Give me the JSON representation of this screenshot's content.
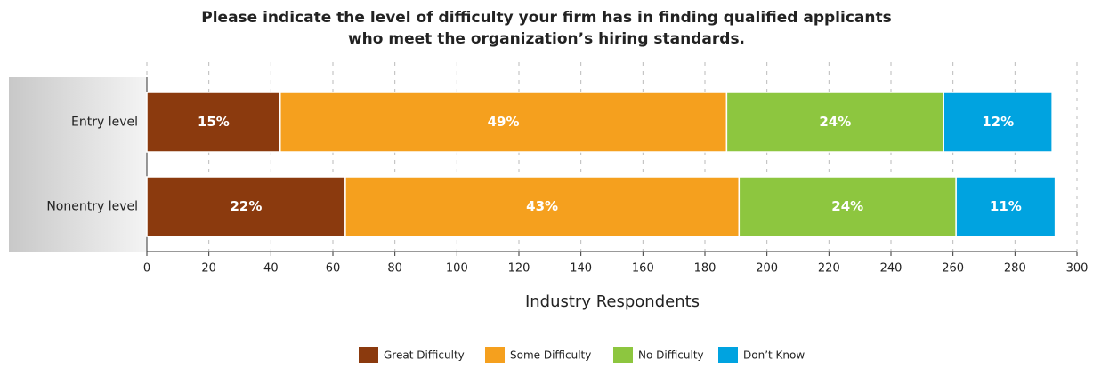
{
  "chart_data": {
    "type": "stacked-bar-horizontal",
    "title": [
      "Please indicate the level of difficulty your firm has in finding qualified applicants",
      "who meet the organization’s hiring standards."
    ],
    "x_label": "Industry Respondents",
    "categories": [
      "Entry level",
      "Nonentry level"
    ],
    "series": [
      {
        "name": "Great Difficulty",
        "color": "#8b3a0e",
        "values": [
          43,
          64
        ],
        "value_labels": [
          "15%",
          "22%"
        ]
      },
      {
        "name": "Some Difficulty",
        "color": "#f5a01e",
        "values": [
          144,
          127
        ],
        "value_labels": [
          "49%",
          "43%"
        ]
      },
      {
        "name": "No Difficulty",
        "color": "#8dc63f",
        "values": [
          70,
          70
        ],
        "value_labels": [
          "24%",
          "24%"
        ]
      },
      {
        "name": "Don’t Know",
        "color": "#00a3e0",
        "values": [
          35,
          32
        ],
        "value_labels": [
          "12%",
          "11%"
        ]
      }
    ],
    "xlim": [
      0,
      300
    ],
    "xticks": [
      0,
      20,
      40,
      60,
      80,
      100,
      120,
      140,
      160,
      180,
      200,
      220,
      240,
      260,
      280,
      300
    ],
    "grid": true
  }
}
